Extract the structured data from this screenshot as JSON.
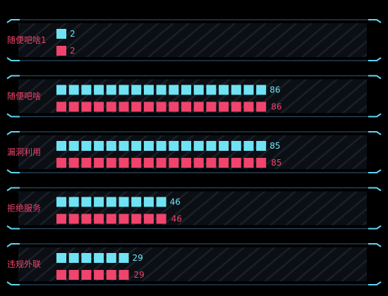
{
  "chart_data": {
    "type": "bar",
    "categories": [
      "随便吧啥1",
      "随便吧啥",
      "漏洞利用",
      "拒绝服务",
      "违规外联"
    ],
    "series": [
      {
        "values": [
          2,
          86,
          85,
          46,
          29
        ],
        "color": "#6fe3f4"
      },
      {
        "values": [
          2,
          86,
          85,
          46,
          29
        ],
        "color": "#f0446c"
      }
    ],
    "xlim": [
      0,
      86
    ],
    "grid": false,
    "legend": "none"
  },
  "colors": {
    "background": "#000000",
    "panel": "#0b0f14",
    "hatch": "#1a2028",
    "frame": "#2a4a63",
    "frame_accent": "#5fd6f2",
    "label": "#f0446c"
  }
}
